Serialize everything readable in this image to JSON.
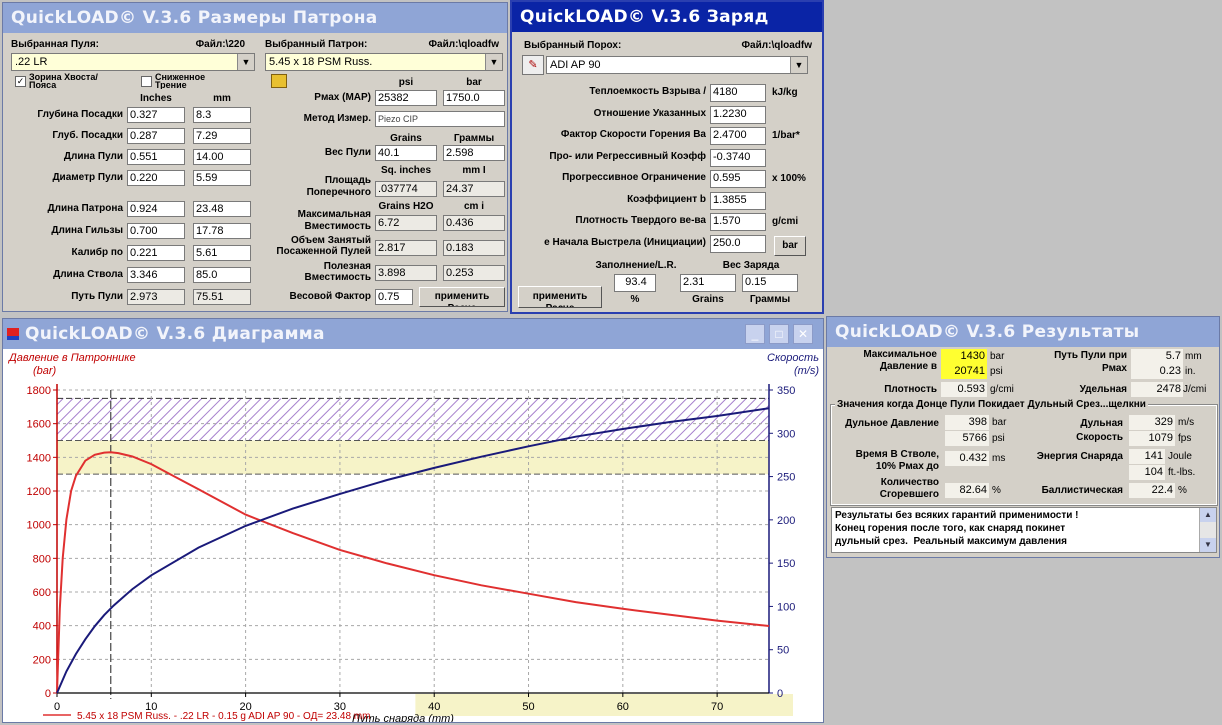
{
  "windows": {
    "dims": {
      "title": "QuickLOAD© V.3.6 Размеры Патрона",
      "bullet_label": "Выбранная Пуля:",
      "bullet_file": "Файл:\\220",
      "bullet_value": ".22 LR",
      "cart_label": "Выбранный Патрон:",
      "cart_file": "Файл:\\qloadfw",
      "cart_value": "5.45 x 18 PSM Russ.",
      "chk1_label": "Зорина Хвоста/Пояса",
      "chk1_checked": "✓",
      "chk2_label": "Сниженное Трение",
      "unit_inches": "Inches",
      "unit_mm": "mm",
      "rows_left": [
        {
          "label": "Глубина Посадки",
          "inches": "0.327",
          "mm": "8.3"
        },
        {
          "label": "Глуб. Посадки",
          "inches": "0.287",
          "mm": "7.29"
        },
        {
          "label": "Длина Пули",
          "inches": "0.551",
          "mm": "14.00"
        },
        {
          "label": "Диаметр Пули",
          "inches": "0.220",
          "mm": "5.59"
        },
        {
          "label": "Длина Патрона",
          "inches": "0.924",
          "mm": "23.48"
        },
        {
          "label": "Длина Гильзы",
          "inches": "0.700",
          "mm": "17.78"
        },
        {
          "label": "Калибр по",
          "inches": "0.221",
          "mm": "5.61"
        },
        {
          "label": "Длина Ствола",
          "inches": "3.346",
          "mm": "85.0"
        },
        {
          "label": "Путь Пули",
          "inches": "2.973",
          "mm": "75.51"
        }
      ],
      "unit_psi": "psi",
      "unit_bar": "bar",
      "pmax_label": "Pмах (MAP)",
      "pmax_psi": "25382",
      "pmax_bar": "1750.0",
      "method_label": "Метод Измер.",
      "method_value": "Piezo CIP",
      "unit_grains": "Grains",
      "unit_grams": "Граммы",
      "weight_label": "Вес Пули",
      "weight_grains": "40.1",
      "weight_grams": "2.598",
      "unit_sqin": "Sq. inches",
      "unit_mm2": "mm I",
      "area_label": "Площадь Поперечного",
      "area_sqin": ".037774",
      "area_mm2": "24.37",
      "unit_h2o": "Grains H2O",
      "unit_cm3": "cm i",
      "maxcap_label": "Максимальная Вместимость",
      "maxcap_gr": "6.72",
      "maxcap_cm": "0.436",
      "occ_label": "Объем Занятый Посаженной Пулей",
      "occ_gr": "2.817",
      "occ_cm": "0.183",
      "useful_label": "Полезная Вместимость",
      "useful_gr": "3.898",
      "useful_cm": "0.253",
      "factor_label": "Весовой Фактор",
      "factor_value": "0.75",
      "apply_button": "применить Расче"
    },
    "charge": {
      "title": "QuickLOAD© V.3.6 Заряд",
      "powder_label": "Выбранный Порох:",
      "powder_file": "Файл:\\qloadfw",
      "powder_value": "ADI AP 90",
      "rows": [
        {
          "label": "Теплоемкость Взрыва /",
          "value": "4180",
          "unit": "kJ/kg"
        },
        {
          "label": "Отношение Указанных",
          "value": "1.2230",
          "unit": ""
        },
        {
          "label": "Фактор Скорости Горения  Ba",
          "value": "2.4700",
          "unit": "1/bar*"
        },
        {
          "label": "Про- или Регрессивный Коэфф",
          "value": "-0.3740",
          "unit": ""
        },
        {
          "label": "Прогрессивное Ограничение",
          "value": "0.595",
          "unit": "x 100%"
        },
        {
          "label": "Коэффициент b",
          "value": "1.3855",
          "unit": ""
        },
        {
          "label": "Плотность Твердого ве-ва",
          "value": "1.570",
          "unit": "g/cmi"
        },
        {
          "label": "е Начала Выстрела (Инициации)",
          "value": "250.0",
          "unit": ""
        }
      ],
      "bar_button": "bar",
      "fill_label": "Заполнение/L.R.",
      "charge_label": "Вес Заряда",
      "fill_value": "93.4",
      "charge_grains": "2.31",
      "charge_grams": "0.15",
      "unit_pct": "%",
      "unit_grains": "Grains",
      "unit_grams": "Граммы",
      "apply_button": "применить Расче"
    },
    "diagram": {
      "title": "QuickLOAD© V.3.6 Диаграмма",
      "min_btn": "_",
      "max_btn": "□",
      "close_btn": "✕"
    },
    "results": {
      "title": "QuickLOAD© V.3.6 Результаты",
      "max_label": "Максимальное Давление в",
      "max_bar": "1430",
      "max_psi": "20741",
      "u_bar": "bar",
      "u_psi": "psi",
      "density_label": "Плотность",
      "density_value": "0.593",
      "density_unit": "g/cmi",
      "path_label": "Путь Пули при Pмах",
      "path_mm": "5.7",
      "path_mm_unit": "mm",
      "path_in": "0.23",
      "path_in_unit": "in.",
      "spec_label": "Удельная",
      "spec_value": "2478",
      "spec_unit": "J/cmi",
      "section_title": "Значения когда Донце Пули Покидает Дульный Срез...щелкни",
      "muzzle_press_label": "Дульное Давление",
      "muzzle_press_bar": "398",
      "muzzle_press_psi": "5766",
      "muzzle_vel_label": "Дульная Скорость",
      "muzzle_vel_ms": "329",
      "muzzle_vel_ms_unit": "m/s",
      "muzzle_vel_fps": "1079",
      "muzzle_vel_fps_unit": "fps",
      "time_label": "Время В Стволе, 10% Pмах до",
      "time_value": "0.432",
      "time_unit": "ms",
      "energy_label": "Энергия Снаряда",
      "energy_j": "141",
      "energy_j_unit": "Joule",
      "energy_ft": "104",
      "energy_ft_unit": "ft.-lbs.",
      "burnt_label": "Количество Сгоревшего",
      "burnt_value": "82.64",
      "burnt_unit": "%",
      "ballistic_label": "Баллистическая",
      "ballistic_value": "22.4",
      "ballistic_unit": "%",
      "message": "Результаты без всяких гарантий применимости !\nКонец горения после того, как снаряд покинет\nдульный срез.  Реальный максимум давления"
    }
  },
  "chart_data": {
    "type": "line",
    "y_left_label": "Давление в Патроннике",
    "y_left_unit": "(bar)",
    "y_right_label": "Скорость",
    "y_right_unit": "(m/s)",
    "xlabel": "Путь снаряда (mm)",
    "xlim": [
      0,
      75.5
    ],
    "ylim_left": [
      0,
      1800
    ],
    "ylim_right": [
      0,
      350
    ],
    "x_ticks": [
      0,
      10,
      20,
      30,
      40,
      50,
      60,
      70
    ],
    "y_left_ticks": [
      0,
      200,
      400,
      600,
      800,
      1000,
      1200,
      1400,
      1600,
      1800
    ],
    "y_right_ticks": [
      0,
      50,
      100,
      150,
      200,
      250,
      300,
      350
    ],
    "grid": true,
    "colors": {
      "pressure": "#e03030",
      "velocity": "#1a1a7a",
      "hatch": "#9060c0",
      "band": "#f6f3c8"
    },
    "series": [
      {
        "name": "",
        "axis": "left",
        "x": [
          0,
          0.3,
          0.6,
          1,
          1.5,
          2,
          3,
          4,
          5,
          5.7,
          6.5,
          8,
          10,
          12,
          15,
          20,
          25,
          30,
          35,
          40,
          45,
          50,
          55,
          60,
          65,
          70,
          75.5
        ],
        "y": [
          0,
          500,
          800,
          1030,
          1200,
          1290,
          1380,
          1415,
          1428,
          1430,
          1425,
          1405,
          1360,
          1300,
          1210,
          1060,
          950,
          850,
          770,
          700,
          640,
          590,
          540,
          500,
          465,
          430,
          398
        ]
      },
      {
        "name": "",
        "axis": "right",
        "x": [
          0,
          1,
          2,
          3,
          4,
          5,
          6,
          8,
          10,
          15,
          20,
          25,
          30,
          35,
          40,
          45,
          50,
          55,
          60,
          65,
          70,
          75.5
        ],
        "y": [
          0,
          25,
          45,
          62,
          77,
          90,
          101,
          120,
          136,
          168,
          193,
          213,
          230,
          246,
          260,
          273,
          285,
          296,
          305,
          313,
          320,
          329
        ]
      }
    ],
    "legend": "5.45 x 18 PSM Russ. - .22 LR - 0.15 g ADI AP 90 - ОД= 23.48 mm",
    "legend_position": "bottom"
  }
}
